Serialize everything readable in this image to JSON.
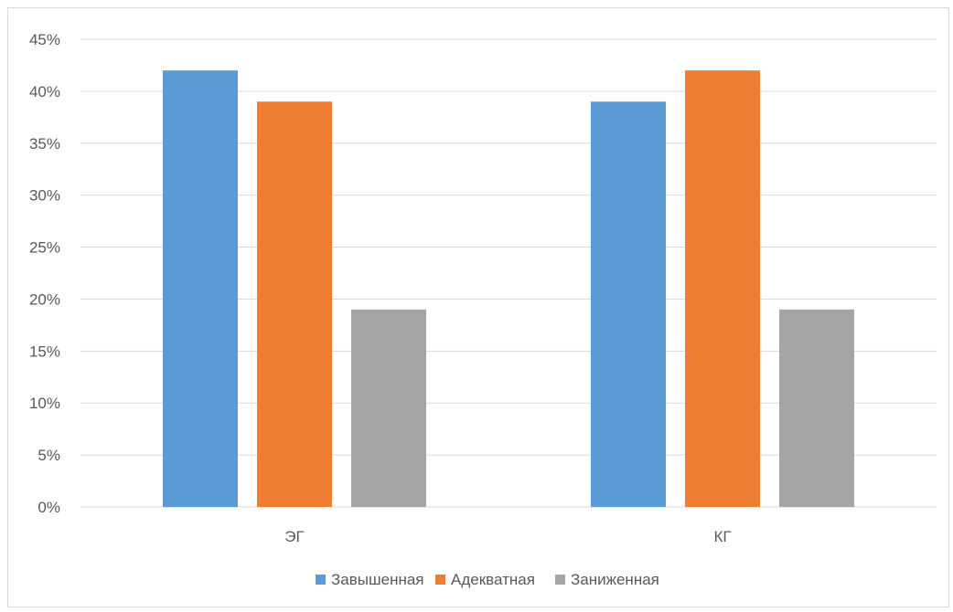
{
  "chart_data": {
    "type": "bar",
    "categories": [
      "ЭГ",
      "КГ"
    ],
    "series": [
      {
        "name": "Завышенная",
        "values": [
          42,
          39
        ],
        "color": "#5b9bd5"
      },
      {
        "name": "Адекватная",
        "values": [
          39,
          42
        ],
        "color": "#ed7d31"
      },
      {
        "name": "Заниженная",
        "values": [
          19,
          19
        ],
        "color": "#a5a5a5"
      }
    ],
    "ylim": [
      0,
      45
    ],
    "yticks": [
      "0%",
      "5%",
      "10%",
      "15%",
      "20%",
      "25%",
      "30%",
      "35%",
      "40%",
      "45%"
    ],
    "grid": true,
    "legend": "bottom",
    "gridColor": "#d9d9d9"
  }
}
